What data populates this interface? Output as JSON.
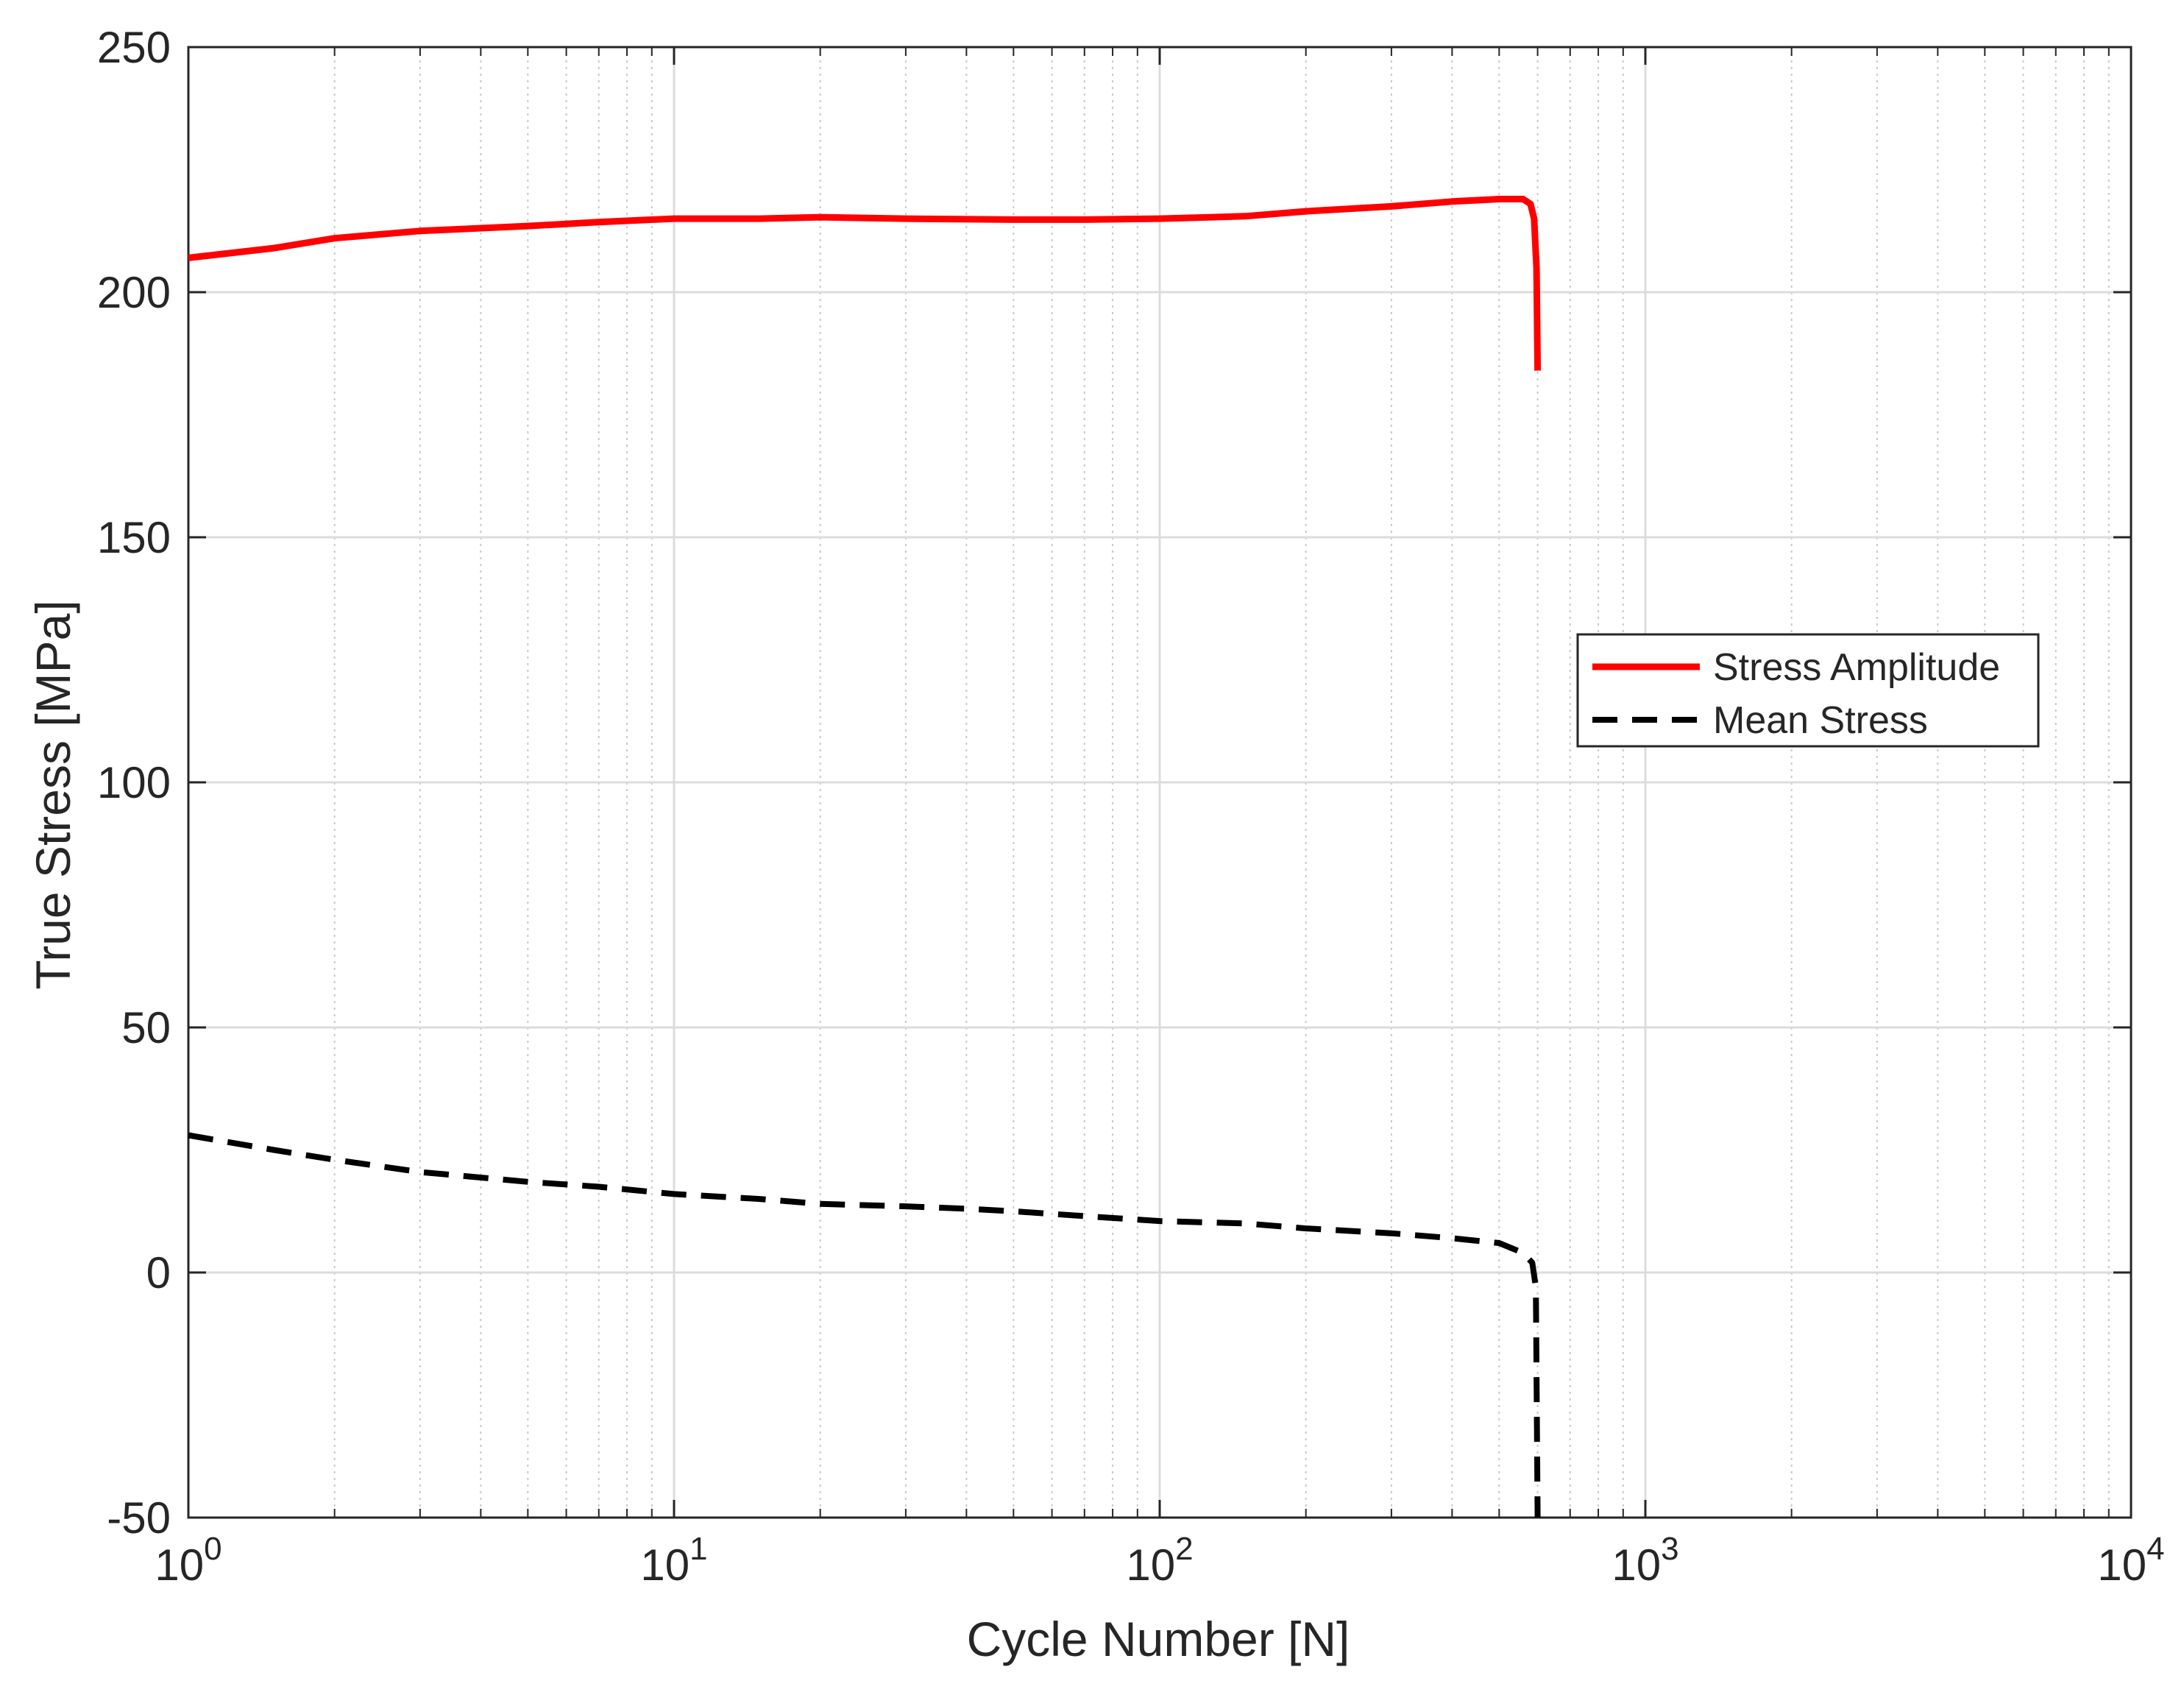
{
  "chart_data": {
    "type": "line",
    "title": "",
    "xlabel": "Cycle Number [N]",
    "ylabel": "True Stress [MPa]",
    "xscale": "log",
    "xlim": [
      1,
      10000
    ],
    "ylim": [
      -50,
      250
    ],
    "grid": true,
    "legend_position": "right",
    "x_ticks": [
      {
        "value": 1,
        "base": "10",
        "exp": "0"
      },
      {
        "value": 10,
        "base": "10",
        "exp": "1"
      },
      {
        "value": 100,
        "base": "10",
        "exp": "2"
      },
      {
        "value": 1000,
        "base": "10",
        "exp": "3"
      },
      {
        "value": 10000,
        "base": "10",
        "exp": "4"
      }
    ],
    "y_ticks": [
      "250",
      "200",
      "150",
      "100",
      "50",
      "0",
      "-50"
    ],
    "series": [
      {
        "name": "Stress Amplitude",
        "color": "#ff0000",
        "style": "solid",
        "points": [
          [
            1,
            207
          ],
          [
            1.5,
            209
          ],
          [
            2,
            211
          ],
          [
            3,
            212.5
          ],
          [
            5,
            213.5
          ],
          [
            7,
            214.3
          ],
          [
            10,
            215
          ],
          [
            15,
            215
          ],
          [
            20,
            215.3
          ],
          [
            30,
            215
          ],
          [
            50,
            214.8
          ],
          [
            70,
            214.8
          ],
          [
            100,
            215
          ],
          [
            150,
            215.5
          ],
          [
            200,
            216.5
          ],
          [
            300,
            217.5
          ],
          [
            400,
            218.5
          ],
          [
            500,
            219
          ],
          [
            560,
            219
          ],
          [
            580,
            218
          ],
          [
            590,
            215
          ],
          [
            597,
            205
          ],
          [
            600,
            184
          ]
        ]
      },
      {
        "name": "Mean Stress",
        "color": "#000000",
        "style": "dashed",
        "points": [
          [
            1,
            28
          ],
          [
            1.5,
            25
          ],
          [
            2,
            23
          ],
          [
            3,
            20.5
          ],
          [
            5,
            18.5
          ],
          [
            7,
            17.5
          ],
          [
            10,
            16
          ],
          [
            15,
            15
          ],
          [
            20,
            14
          ],
          [
            30,
            13.5
          ],
          [
            40,
            13
          ],
          [
            50,
            12.5
          ],
          [
            70,
            11.5
          ],
          [
            100,
            10.5
          ],
          [
            150,
            10
          ],
          [
            200,
            9
          ],
          [
            300,
            8
          ],
          [
            400,
            7
          ],
          [
            500,
            6
          ],
          [
            560,
            4
          ],
          [
            585,
            2
          ],
          [
            595,
            -3
          ],
          [
            600,
            -50
          ]
        ]
      }
    ]
  }
}
